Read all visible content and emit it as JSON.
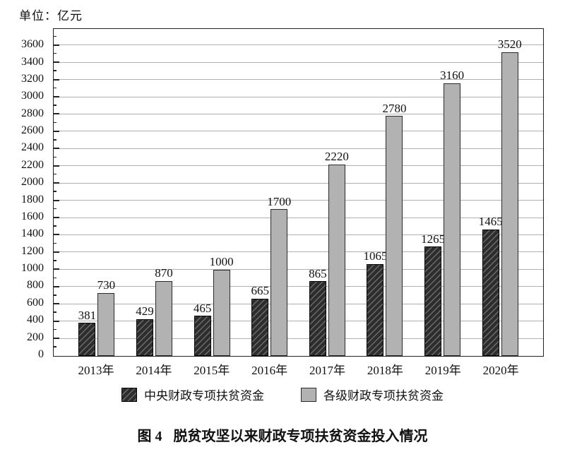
{
  "unit_label": "单位：亿元",
  "chart_data": {
    "type": "bar",
    "title": "脱贫攻坚以来财政专项扶贫资金投入情况",
    "unit": "亿元",
    "categories": [
      "2013年",
      "2014年",
      "2015年",
      "2016年",
      "2017年",
      "2018年",
      "2019年",
      "2020年"
    ],
    "series": [
      {
        "key": "central",
        "name": "中央财政专项扶贫资金",
        "style": "dark-hatched",
        "color": "#2d2d2d",
        "values": [
          381,
          429,
          465,
          665,
          865,
          1065,
          1265,
          1465
        ]
      },
      {
        "key": "all-levels",
        "name": "各级财政专项扶贫资金",
        "style": "solid-gray",
        "color": "#b2b2b2",
        "values": [
          730,
          870,
          1000,
          1700,
          2220,
          2780,
          3160,
          3520
        ]
      }
    ],
    "ylim": [
      0,
      3790
    ],
    "yticks": [
      0,
      200,
      400,
      600,
      800,
      1000,
      1200,
      1400,
      1600,
      1800,
      2000,
      2200,
      2400,
      2600,
      2800,
      3000,
      3200,
      3400,
      3600
    ],
    "ytick_step": 200,
    "ytick_minor_step": 100,
    "grid": true,
    "value_labels": true,
    "legend_position": "bottom"
  },
  "caption": {
    "prefix": "图 4",
    "text": "脱贫攻坚以来财政专项扶贫资金投入情况"
  },
  "colors": {
    "background": "#ffffff",
    "text": "#111111",
    "axis": "#222222",
    "gridline": "#b0b0b0",
    "bar_dark": "#2d2d2d",
    "bar_dark_hatch": "#6b6b6b",
    "bar_gray": "#b2b2b2",
    "bar_border": "#2a2a2a"
  }
}
